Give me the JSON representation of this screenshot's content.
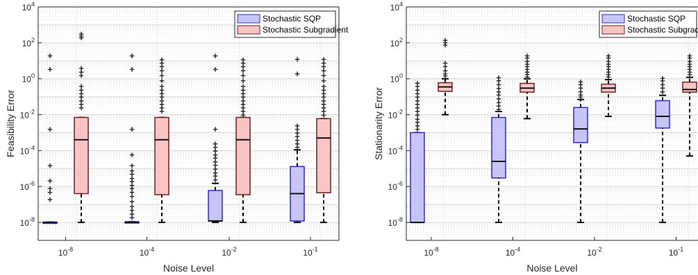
{
  "figure": {
    "panels": [
      {
        "ylabel": "Feasibility Error",
        "xlabel": "Noise Level",
        "legend": [
          "Stochastic SQP",
          "Stochastic Subgradient"
        ]
      },
      {
        "ylabel": "Stationarity Error",
        "xlabel": "Noise Level",
        "legend": [
          "Stochastic SQP",
          "Stochastic Subgradient"
        ]
      }
    ]
  },
  "chart_data": [
    {
      "type": "box",
      "ylabel": "Feasibility Error",
      "xlabel": "Noise Level",
      "yscale": "log",
      "ylim": [
        1e-09,
        10000.0
      ],
      "yticks": [
        "10^-8",
        "10^-6",
        "10^-4",
        "10^-2",
        "10^0",
        "10^2",
        "10^4"
      ],
      "categories": [
        "10^-8",
        "10^-4",
        "10^-2",
        "10^-1"
      ],
      "grid": true,
      "legend_position": "top-right",
      "colors": {
        "sqp_fill": "#c7c5f7",
        "sqp_edge": "#2b2bc7",
        "subgrad_fill": "#f9c4c4",
        "subgrad_edge": "#6e2020",
        "median": "#111111",
        "outlier": "#ff0000"
      },
      "series": [
        {
          "name": "Stochastic SQP",
          "boxes": [
            {
              "q1": 1e-08,
              "median": 1e-08,
              "q3": 1.05e-08,
              "whisker_low": 1e-08,
              "whisker_high": 1.05e-08,
              "outliers": [
                20,
                3.5,
                0.0016,
                1.5e-05,
                2.2e-06,
                8e-07,
                5e-07,
                2e-07
              ]
            },
            {
              "q1": 1e-08,
              "median": 1e-08,
              "q3": 1.1e-08,
              "whisker_low": 1e-08,
              "whisker_high": 1.1e-08,
              "outliers": [
                20,
                3.5,
                0.0016,
                6e-05,
                1.5e-05,
                8e-06,
                5e-06,
                3e-06,
                2e-06,
                1.2e-06,
                8e-07,
                5e-07,
                3e-07,
                1.5e-07,
                8e-08,
                5e-08,
                3e-08,
                2e-08
              ]
            },
            {
              "q1": 1.2e-08,
              "median": 1.2e-08,
              "q3": 6e-07,
              "whisker_low": 1e-08,
              "whisker_high": 1.5e-06,
              "outliers": [
                20,
                3.5,
                0.0016,
                0.00025,
                0.00016,
                0.0001,
                6e-05,
                4e-05,
                2.5e-05,
                1.6e-05,
                1e-05,
                6e-06,
                4e-06,
                2.5e-06
              ]
            },
            {
              "q1": 1.2e-08,
              "median": 4e-07,
              "q3": 1.3e-05,
              "whisker_low": 1e-08,
              "whisker_high": 0.00011,
              "outliers": [
                13,
                2,
                0.0025,
                0.0016,
                0.001,
                0.00063,
                0.0004,
                0.00025,
                0.00016
              ]
            }
          ]
        },
        {
          "name": "Stochastic Subgradient",
          "boxes": [
            {
              "q1": 4e-07,
              "median": 0.0004,
              "q3": 0.007,
              "whisker_low": 1e-08,
              "whisker_high": 0.007,
              "outliers": [
                330,
                250,
                200,
                4,
                2.5,
                1.6,
                0.4,
                0.25,
                0.16,
                0.1,
                0.063,
                0.04,
                0.025
              ]
            },
            {
              "q1": 3.5e-07,
              "median": 0.0004,
              "q3": 0.007,
              "whisker_low": 1e-08,
              "whisker_high": 0.007,
              "outliers": [
                12,
                8,
                5,
                3,
                1.6,
                0.8,
                0.4,
                0.25,
                0.16,
                0.1,
                0.063,
                0.04,
                0.025,
                0.016
              ]
            },
            {
              "q1": 3.5e-07,
              "median": 0.0004,
              "q3": 0.007,
              "whisker_low": 1e-08,
              "whisker_high": 0.007,
              "outliers": [
                12,
                8,
                5,
                3,
                1.6,
                0.8,
                0.4,
                0.25,
                0.16,
                0.1,
                0.063,
                0.04,
                0.025,
                0.016,
                0.01
              ]
            },
            {
              "q1": 4.5e-07,
              "median": 0.0005,
              "q3": 0.006,
              "whisker_low": 1e-08,
              "whisker_high": 0.006,
              "outliers": [
                13,
                8,
                5,
                3,
                1.6,
                0.8,
                0.4,
                0.25,
                0.16,
                0.1,
                0.063,
                0.04,
                0.025,
                0.016,
                0.01
              ]
            }
          ]
        }
      ]
    },
    {
      "type": "box",
      "ylabel": "Stationarity Error",
      "xlabel": "Noise Level",
      "yscale": "log",
      "ylim": [
        1e-09,
        10000.0
      ],
      "yticks": [
        "10^-8",
        "10^-6",
        "10^-4",
        "10^-2",
        "10^0",
        "10^2",
        "10^4"
      ],
      "categories": [
        "10^-8",
        "10^-4",
        "10^-2",
        "10^-1"
      ],
      "grid": true,
      "legend_position": "top-right",
      "colors": {
        "sqp_fill": "#c7c5f7",
        "sqp_edge": "#2b2bc7",
        "subgrad_fill": "#f9c4c4",
        "subgrad_edge": "#6e2020",
        "median": "#111111",
        "outlier": "#ff0000"
      },
      "series": [
        {
          "name": "Stochastic SQP",
          "boxes": [
            {
              "q1": 1e-08,
              "median": 1e-08,
              "q3": 0.001,
              "whisker_low": 1e-08,
              "whisker_high": 0.001,
              "outliers": [
                0.6,
                0.4,
                0.25,
                0.16,
                0.1,
                0.063,
                0.04,
                0.025,
                0.016,
                0.01,
                0.006,
                0.004,
                0.0025,
                0.0016
              ]
            },
            {
              "q1": 3e-06,
              "median": 2.5e-05,
              "q3": 0.007,
              "whisker_low": 1e-08,
              "whisker_high": 0.015,
              "outliers": [
                1.2,
                0.8,
                0.5,
                0.3,
                0.2,
                0.13,
                0.08,
                0.05,
                0.032,
                0.02
              ]
            },
            {
              "q1": 0.00028,
              "median": 0.0016,
              "q3": 0.025,
              "whisker_low": 1e-08,
              "whisker_high": 0.07,
              "outliers": [
                0.7,
                0.5,
                0.32,
                0.2,
                0.13,
                0.1
              ]
            },
            {
              "q1": 0.0018,
              "median": 0.008,
              "q3": 0.06,
              "whisker_low": 1e-08,
              "whisker_high": 0.12,
              "outliers": [
                1.1,
                0.8,
                0.5,
                0.32,
                0.2
              ]
            }
          ]
        },
        {
          "name": "Stochastic Subgradient",
          "boxes": [
            {
              "q1": 0.2,
              "median": 0.35,
              "q3": 0.6,
              "whisker_low": 0.01,
              "whisker_high": 1.0,
              "outliers": [
                150,
                110,
                80,
                8,
                5,
                3,
                2,
                1.5
              ]
            },
            {
              "q1": 0.18,
              "median": 0.3,
              "q3": 0.55,
              "whisker_low": 0.006,
              "whisker_high": 1.0,
              "outliers": [
                20,
                15,
                10,
                7,
                5,
                3.5,
                2.5,
                1.8,
                1.3
              ]
            },
            {
              "q1": 0.18,
              "median": 0.3,
              "q3": 0.5,
              "whisker_low": 0.008,
              "whisker_high": 0.9,
              "outliers": [
                20,
                15,
                10,
                7,
                5,
                3.5,
                2.5,
                1.8,
                1.3
              ]
            },
            {
              "q1": 0.18,
              "median": 0.25,
              "q3": 0.65,
              "whisker_low": 5e-05,
              "whisker_high": 1.2,
              "outliers": [
                20,
                15,
                10,
                7,
                5,
                3.5,
                2.5,
                1.8
              ]
            }
          ]
        }
      ]
    }
  ]
}
